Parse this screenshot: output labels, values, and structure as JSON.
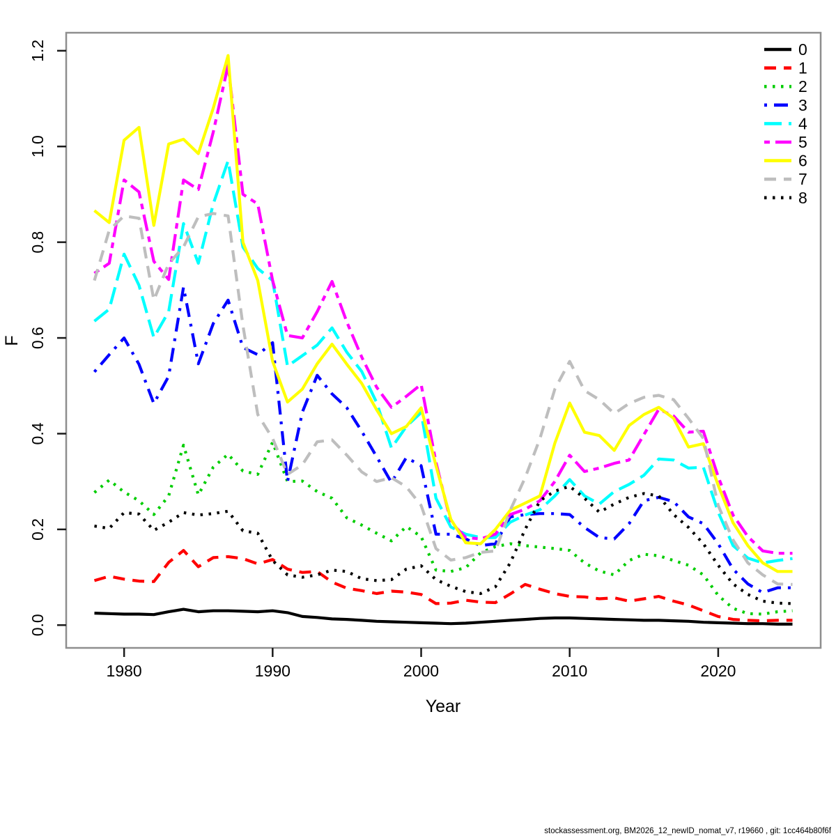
{
  "chart": {
    "title": "",
    "ylabel": "F",
    "xlabel": "Year",
    "footer": "stockassessment.org, BM2026_12_newID_nomat_v7, r19660 , git: 1cc464b80f6f"
  },
  "chart_data": {
    "type": "line",
    "title": "",
    "xlabel": "Year",
    "ylabel": "F",
    "grid": false,
    "legend_position": "top-right",
    "box_color": "#8e8e8e",
    "tick_color": "#1a1a1a",
    "xlim": [
      1976.1,
      2026.9
    ],
    "ylim": [
      -0.0476,
      1.2376
    ],
    "x_ticks": [
      1980,
      1990,
      2000,
      2010,
      2020
    ],
    "y_ticks": [
      0.0,
      0.2,
      0.4,
      0.6,
      0.8,
      1.0,
      1.2
    ],
    "y_tick_labels": [
      "0.0",
      "0.2",
      "0.4",
      "0.6",
      "0.8",
      "1.0",
      "1.2"
    ],
    "x": [
      1978,
      1979,
      1980,
      1981,
      1982,
      1983,
      1984,
      1985,
      1986,
      1987,
      1988,
      1989,
      1990,
      1991,
      1992,
      1993,
      1994,
      1995,
      1996,
      1997,
      1998,
      1999,
      2000,
      2001,
      2002,
      2003,
      2004,
      2005,
      2006,
      2007,
      2008,
      2009,
      2010,
      2011,
      2012,
      2013,
      2014,
      2015,
      2016,
      2017,
      2018,
      2019,
      2020,
      2021,
      2022,
      2023,
      2024,
      2025
    ],
    "series": [
      {
        "name": "0",
        "color": "#000000",
        "linetype": "solid",
        "values": [
          0.025,
          0.024,
          0.023,
          0.023,
          0.022,
          0.028,
          0.033,
          0.028,
          0.03,
          0.03,
          0.029,
          0.028,
          0.03,
          0.026,
          0.018,
          0.016,
          0.013,
          0.012,
          0.01,
          0.008,
          0.007,
          0.006,
          0.005,
          0.004,
          0.003,
          0.004,
          0.006,
          0.008,
          0.01,
          0.012,
          0.014,
          0.015,
          0.015,
          0.014,
          0.013,
          0.012,
          0.011,
          0.01,
          0.01,
          0.009,
          0.008,
          0.006,
          0.005,
          0.004,
          0.003,
          0.003,
          0.002,
          0.002
        ]
      },
      {
        "name": "1",
        "color": "#FF0000",
        "linetype": "dashed",
        "values": [
          0.093,
          0.102,
          0.096,
          0.092,
          0.091,
          0.131,
          0.156,
          0.122,
          0.141,
          0.143,
          0.139,
          0.128,
          0.137,
          0.117,
          0.11,
          0.112,
          0.09,
          0.077,
          0.072,
          0.066,
          0.071,
          0.069,
          0.064,
          0.045,
          0.046,
          0.052,
          0.048,
          0.047,
          0.065,
          0.085,
          0.075,
          0.066,
          0.06,
          0.059,
          0.055,
          0.057,
          0.05,
          0.055,
          0.06,
          0.05,
          0.042,
          0.03,
          0.018,
          0.012,
          0.01,
          0.009,
          0.01,
          0.01
        ]
      },
      {
        "name": "2",
        "color": "#00CD00",
        "linetype": "dotted",
        "values": [
          0.277,
          0.303,
          0.278,
          0.26,
          0.231,
          0.27,
          0.376,
          0.272,
          0.33,
          0.357,
          0.322,
          0.315,
          0.382,
          0.3,
          0.301,
          0.279,
          0.265,
          0.224,
          0.209,
          0.192,
          0.176,
          0.206,
          0.185,
          0.115,
          0.112,
          0.12,
          0.151,
          0.164,
          0.17,
          0.166,
          0.163,
          0.16,
          0.156,
          0.13,
          0.113,
          0.105,
          0.135,
          0.148,
          0.145,
          0.135,
          0.125,
          0.105,
          0.062,
          0.035,
          0.024,
          0.023,
          0.028,
          0.03
        ]
      },
      {
        "name": "3",
        "color": "#0000FF",
        "linetype": "dotdash",
        "values": [
          0.529,
          0.565,
          0.6,
          0.545,
          0.463,
          0.52,
          0.706,
          0.546,
          0.63,
          0.679,
          0.58,
          0.565,
          0.59,
          0.3,
          0.445,
          0.522,
          0.483,
          0.454,
          0.405,
          0.352,
          0.298,
          0.35,
          0.333,
          0.19,
          0.19,
          0.18,
          0.166,
          0.17,
          0.226,
          0.231,
          0.233,
          0.233,
          0.231,
          0.204,
          0.183,
          0.18,
          0.212,
          0.26,
          0.267,
          0.258,
          0.226,
          0.212,
          0.17,
          0.117,
          0.086,
          0.068,
          0.078,
          0.078
        ]
      },
      {
        "name": "4",
        "color": "#00FFFF",
        "linetype": "longdash",
        "values": [
          0.635,
          0.66,
          0.775,
          0.71,
          0.601,
          0.655,
          0.839,
          0.756,
          0.88,
          0.97,
          0.79,
          0.745,
          0.72,
          0.541,
          0.563,
          0.585,
          0.621,
          0.57,
          0.53,
          0.465,
          0.37,
          0.415,
          0.444,
          0.265,
          0.205,
          0.19,
          0.183,
          0.183,
          0.215,
          0.23,
          0.241,
          0.27,
          0.304,
          0.27,
          0.253,
          0.279,
          0.294,
          0.313,
          0.347,
          0.345,
          0.328,
          0.33,
          0.236,
          0.166,
          0.14,
          0.13,
          0.135,
          0.139
        ]
      },
      {
        "name": "5",
        "color": "#FF00FF",
        "linetype": "twodash",
        "values": [
          0.735,
          0.756,
          0.93,
          0.905,
          0.76,
          0.722,
          0.93,
          0.91,
          1.03,
          1.17,
          0.9,
          0.88,
          0.72,
          0.605,
          0.6,
          0.655,
          0.718,
          0.633,
          0.56,
          0.497,
          0.455,
          0.478,
          0.503,
          0.34,
          0.215,
          0.183,
          0.18,
          0.19,
          0.231,
          0.242,
          0.26,
          0.3,
          0.355,
          0.321,
          0.328,
          0.338,
          0.345,
          0.398,
          0.451,
          0.437,
          0.403,
          0.405,
          0.31,
          0.23,
          0.185,
          0.155,
          0.15,
          0.15
        ]
      },
      {
        "name": "6",
        "color": "#FFFF00",
        "linetype": "solid",
        "values": [
          0.866,
          0.841,
          1.013,
          1.04,
          0.835,
          1.005,
          1.015,
          0.985,
          1.08,
          1.19,
          0.8,
          0.72,
          0.551,
          0.466,
          0.493,
          0.546,
          0.587,
          0.545,
          0.505,
          0.45,
          0.4,
          0.415,
          0.454,
          0.333,
          0.221,
          0.172,
          0.17,
          0.2,
          0.24,
          0.255,
          0.27,
          0.38,
          0.464,
          0.403,
          0.396,
          0.365,
          0.417,
          0.44,
          0.455,
          0.432,
          0.372,
          0.379,
          0.292,
          0.214,
          0.166,
          0.13,
          0.112,
          0.112
        ]
      },
      {
        "name": "7",
        "color": "#BEBEBE",
        "linetype": "dashed",
        "values": [
          0.72,
          0.825,
          0.855,
          0.85,
          0.679,
          0.755,
          0.79,
          0.853,
          0.86,
          0.855,
          0.626,
          0.44,
          0.39,
          0.315,
          0.335,
          0.383,
          0.387,
          0.355,
          0.32,
          0.3,
          0.308,
          0.289,
          0.25,
          0.16,
          0.136,
          0.141,
          0.152,
          0.155,
          0.24,
          0.308,
          0.39,
          0.493,
          0.551,
          0.49,
          0.471,
          0.442,
          0.463,
          0.476,
          0.48,
          0.471,
          0.432,
          0.39,
          0.25,
          0.178,
          0.13,
          0.105,
          0.086,
          0.085
        ]
      },
      {
        "name": "8",
        "color": "#000000",
        "linetype": "dotted",
        "values": [
          0.207,
          0.202,
          0.235,
          0.232,
          0.198,
          0.215,
          0.235,
          0.23,
          0.233,
          0.238,
          0.197,
          0.192,
          0.135,
          0.105,
          0.1,
          0.105,
          0.115,
          0.112,
          0.097,
          0.093,
          0.095,
          0.117,
          0.124,
          0.095,
          0.081,
          0.07,
          0.066,
          0.08,
          0.13,
          0.2,
          0.26,
          0.28,
          0.29,
          0.265,
          0.236,
          0.253,
          0.267,
          0.275,
          0.27,
          0.231,
          0.204,
          0.17,
          0.125,
          0.086,
          0.064,
          0.05,
          0.046,
          0.045
        ]
      }
    ]
  }
}
